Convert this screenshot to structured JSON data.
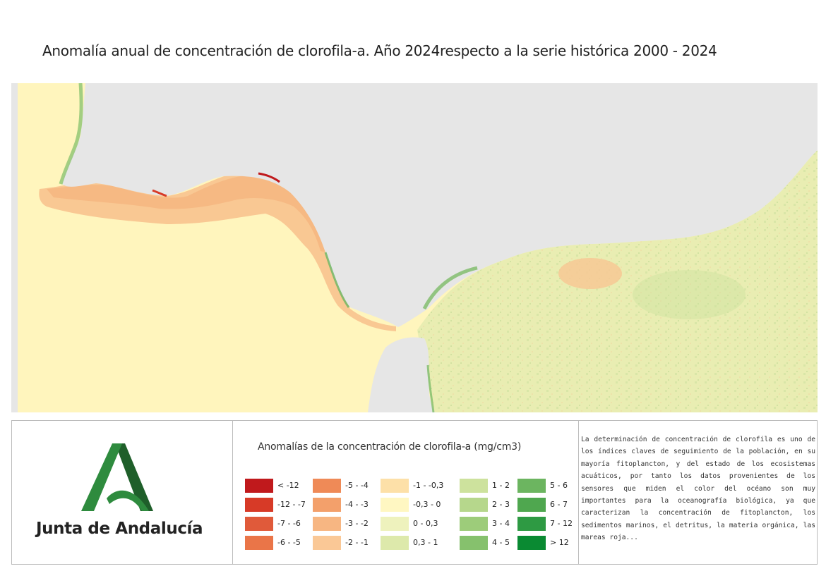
{
  "title": "Anomalía anual de concentración de clorofila-a. Año 2024respecto a la serie histórica 2000 - 2024",
  "logo": {
    "text": "Junta de Andalucía",
    "colors": {
      "green": "#2e8b3e",
      "dark": "#1f5f2a"
    }
  },
  "legend": {
    "title": "Anomalías de la concentración de clorofila-a (mg/cm3)",
    "items": [
      {
        "label": "< -12",
        "color": "#c0191c"
      },
      {
        "label": "-12 - -7",
        "color": "#d73a27"
      },
      {
        "label": "-7 - -6",
        "color": "#e05a3a"
      },
      {
        "label": "-6 - -5",
        "color": "#ea7548"
      },
      {
        "label": "-5 - -4",
        "color": "#ef8a57"
      },
      {
        "label": "-4 - -3",
        "color": "#f3a06b"
      },
      {
        "label": "-3 - -2",
        "color": "#f7b682"
      },
      {
        "label": "-2 - -1",
        "color": "#fac896"
      },
      {
        "label": "-1 - -0,3",
        "color": "#fde0a8"
      },
      {
        "label": "-0,3 - 0",
        "color": "#fff7c2"
      },
      {
        "label": "0 - 0,3",
        "color": "#eef2bd"
      },
      {
        "label": "0,3 - 1",
        "color": "#dde9ab"
      },
      {
        "label": "1 - 2",
        "color": "#cde29d"
      },
      {
        "label": "2 - 3",
        "color": "#b6d78c"
      },
      {
        "label": "3 - 4",
        "color": "#9dcc7a"
      },
      {
        "label": "4 - 5",
        "color": "#86c16d"
      },
      {
        "label": "5 - 6",
        "color": "#6cb560"
      },
      {
        "label": "6 - 7",
        "color": "#4fa74f"
      },
      {
        "label": "7 - 12",
        "color": "#2e9a43"
      },
      {
        "label": "> 12",
        "color": "#0a8a32"
      }
    ]
  },
  "description": "La determinación de concentración de clorofila es uno de los índices claves de seguimiento de la población, en su mayoría fitoplancton, y del estado de los ecosistemas acuáticos, por tanto los datos provenientes de los sensores que miden el color del océano son muy importantes para la oceanografía biológica, ya que caracterizan la concentración de fitoplancton, los sedimentos marinos, el detritus, la materia orgánica, las mareas roja...",
  "map": {
    "land_color": "#e6e6e6",
    "sea_base_color": "#fff5bd",
    "atlantic_coastal_color": "#f9c893",
    "mediterranean_color": "#e9edb2",
    "coast_green_color": "#6cb560"
  }
}
